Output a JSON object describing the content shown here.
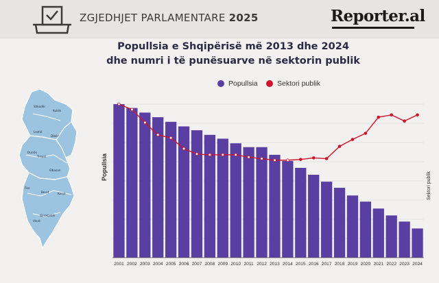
{
  "header": {
    "title_main": "ZGJEDHJET PARLAMENTARE",
    "title_year": "2025",
    "logo": "Reporter.al",
    "ballot_icon": "ballot-box-icon"
  },
  "colors": {
    "bar": "#5a3fa3",
    "line": "#d0122b",
    "map_fill": "#9cc3df",
    "map_stroke": "#ffffff"
  },
  "map": {
    "regions": [
      "Shkodër",
      "Kukës",
      "Lezhë",
      "Dibër",
      "Durrës",
      "Tiranë",
      "Elbasan",
      "Fier",
      "Berat",
      "Korçë",
      "Gjirokastër",
      "Vlorë"
    ]
  },
  "chart_data": {
    "type": "bar",
    "title": "Popullsia e Shqipërisë më 2013 dhe 2024",
    "subtitle": "dhe numri i të punësuarve në sektorin publik",
    "ylabel": "Popullsia",
    "y2label": "Sektori publik",
    "legend_placement": "top-center",
    "grid": true,
    "categories": [
      "2001",
      "2002",
      "2003",
      "2004",
      "2005",
      "2006",
      "2007",
      "2008",
      "2009",
      "2010",
      "2011",
      "2012",
      "2013",
      "2014",
      "2015",
      "2016",
      "2017",
      "2018",
      "2019",
      "2020",
      "2021",
      "2022",
      "2023",
      "2024"
    ],
    "ylim": [
      0,
      100
    ],
    "y2lim": [
      0,
      100
    ],
    "series": [
      {
        "name": "Popullsia",
        "type": "bar",
        "values": [
          100,
          97.5,
          94.5,
          91.5,
          88.5,
          85.5,
          83,
          80,
          77.5,
          74.5,
          72,
          72,
          67,
          63,
          58.5,
          54,
          49.5,
          45.5,
          40.5,
          36.5,
          32,
          27.5,
          23.5,
          19
        ]
      },
      {
        "name": "Sektori publik",
        "type": "line",
        "values": [
          100,
          96.5,
          88,
          80,
          78,
          71,
          67.5,
          67,
          67,
          67,
          65.5,
          64.5,
          63.5,
          63.5,
          64,
          65,
          64.5,
          72.5,
          77,
          81,
          91.5,
          93,
          89,
          93
        ]
      }
    ]
  }
}
